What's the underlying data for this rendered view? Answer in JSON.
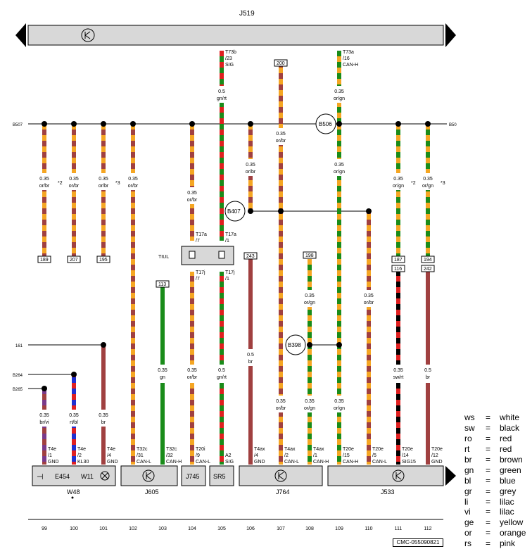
{
  "colors": {
    "orange": "#f5a623",
    "brown": "#a04040",
    "green": "#1a8c1a",
    "red": "#e02020",
    "blue": "#2030d0",
    "violet": "#7a3a8a",
    "black": "#000000",
    "grey": "#c8c8c8"
  },
  "header": {
    "top_unit": "J519"
  },
  "bus_labels": {
    "left_b507": "B507",
    "right_b50": "B50",
    "l161": "161",
    "b264": "B264",
    "b265": "B265"
  },
  "splices": {
    "b506": "B506",
    "b407": "B407",
    "b398": "B398"
  },
  "top_connectors": {
    "t73b": [
      "T73b",
      "/23",
      "SIG"
    ],
    "t73a": [
      "T73a",
      "/16",
      "CAN-H"
    ],
    "box200": "200"
  },
  "wire_labels": {
    "c99": [
      "0.35",
      "or/br"
    ],
    "c100": [
      "0.35",
      "or/br"
    ],
    "c101": [
      "0.35",
      "or/br"
    ],
    "c102": [
      "0.35",
      "or/br"
    ],
    "c104a": [
      "0.35",
      "or/br"
    ],
    "c105a": [
      "0.5",
      "gn/rt"
    ],
    "c107a": [
      "0.35",
      "or/br"
    ],
    "c109a": [
      "0.35",
      "or/gn"
    ],
    "c106": [
      "0.35",
      "or/br"
    ],
    "c109b": [
      "0.35",
      "or/gn"
    ],
    "c111": [
      "0.35",
      "or/gn"
    ],
    "c112": [
      "0.35",
      "or/gn"
    ],
    "star2a": "*2",
    "star3a": "*3",
    "star2b": "*2",
    "star3b": "*3",
    "c108a": [
      "0.35",
      "or/gn"
    ],
    "c110": [
      "0.35",
      "or/br"
    ],
    "c103": [
      "0.35",
      "gn"
    ],
    "c104b": [
      "0.35",
      "or/br"
    ],
    "c105b": [
      "0.5",
      "gn/rt"
    ],
    "c106b": [
      "0.5",
      "br"
    ],
    "c111b": [
      "0.35",
      "sw/rt"
    ],
    "c112b": [
      "0.5",
      "br"
    ],
    "c99b": [
      "0.35",
      "br/vi"
    ],
    "c100b": [
      "0.35",
      "rt/bl"
    ],
    "c101b": [
      "0.35",
      "br"
    ],
    "c107b": [
      "0.35",
      "or/br"
    ],
    "c108b": [
      "0.35",
      "or/gn"
    ],
    "c109c": [
      "0.35",
      "or/gn"
    ]
  },
  "boxes": {
    "b189": "189",
    "b207": "207",
    "b195": "195",
    "b243": "243",
    "b198": "198",
    "b187": "187",
    "b194": "194",
    "b116": "116",
    "b242": "242",
    "b113": "113"
  },
  "tiul": {
    "label": "TIUL",
    "t17a_7": [
      "T17a",
      "/7"
    ],
    "t17a_1": [
      "T17a",
      "/1"
    ],
    "t17j_7": [
      "T17j",
      "/7"
    ],
    "t17j_1": [
      "T17j",
      "/1"
    ]
  },
  "bottom_pins": {
    "p99": [
      "T4e",
      "/1",
      "GND"
    ],
    "p100": [
      "T4e",
      "/2",
      "KL30"
    ],
    "p101": [
      "T4e",
      "/4",
      "GND"
    ],
    "p102": [
      "T32c",
      "/31",
      "CAN-L"
    ],
    "p103": [
      "T32c",
      "/32",
      "CAN-H"
    ],
    "p104": [
      "T20i",
      "/9",
      "CAN-L"
    ],
    "p105": [
      "A2",
      "SIG"
    ],
    "p106": [
      "T4ax",
      "/4",
      "GND"
    ],
    "p107": [
      "T4ax",
      "/2",
      "CAN-L"
    ],
    "p108": [
      "T4ax",
      "/1",
      "CAN-H"
    ],
    "p109": [
      "T20e",
      "/15",
      "CAN-H"
    ],
    "p110": [
      "T20e",
      "/5",
      "CAN-L"
    ],
    "p111": [
      "T20e",
      "/14",
      "SIG15"
    ],
    "p112": [
      "T20e",
      "/12",
      "GND"
    ]
  },
  "components": {
    "e454": "E454",
    "w11": "W11",
    "w48": "W48",
    "j605": "J605",
    "j745": "J745",
    "sr5": "SR5",
    "j764": "J764",
    "j533": "J533"
  },
  "columns": [
    "99",
    "100",
    "101",
    "102",
    "103",
    "104",
    "105",
    "106",
    "107",
    "108",
    "109",
    "110",
    "111",
    "112"
  ],
  "legend": [
    {
      "code": "ws",
      "eq": "=",
      "name": "white"
    },
    {
      "code": "sw",
      "eq": "=",
      "name": "black"
    },
    {
      "code": "ro",
      "eq": "=",
      "name": "red"
    },
    {
      "code": "rt",
      "eq": "=",
      "name": "red"
    },
    {
      "code": "br",
      "eq": "=",
      "name": "brown"
    },
    {
      "code": "gn",
      "eq": "=",
      "name": "green"
    },
    {
      "code": "bl",
      "eq": "=",
      "name": "blue"
    },
    {
      "code": "gr",
      "eq": "=",
      "name": "grey"
    },
    {
      "code": "li",
      "eq": "=",
      "name": "lilac"
    },
    {
      "code": "vi",
      "eq": "=",
      "name": "lilac"
    },
    {
      "code": "ge",
      "eq": "=",
      "name": "yellow"
    },
    {
      "code": "or",
      "eq": "=",
      "name": "orange"
    },
    {
      "code": "rs",
      "eq": "=",
      "name": "pink"
    }
  ],
  "ref_code": "CMC-055090821"
}
